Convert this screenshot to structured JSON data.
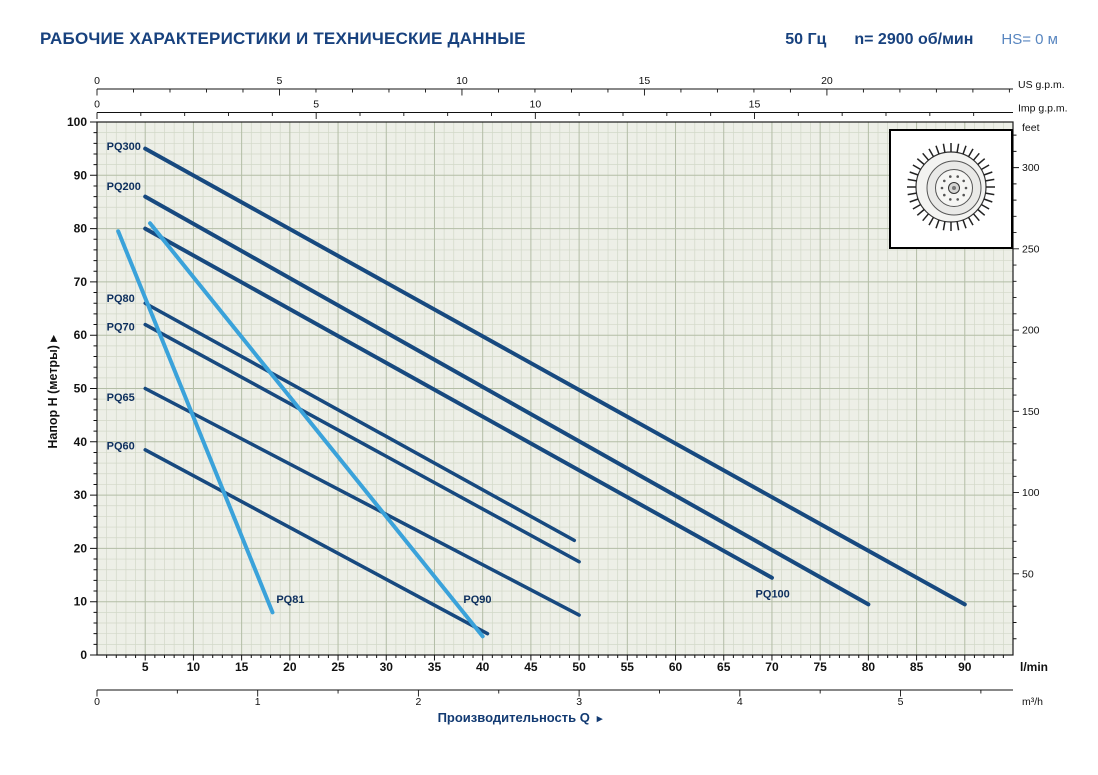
{
  "header": {
    "title": "РАБОЧИЕ ХАРАКТЕРИСТИКИ И ТЕХНИЧЕСКИЕ ДАННЫЕ",
    "frequency": "50 Гц",
    "speed": "n= 2900 об/мин",
    "hs": "HS= 0 м"
  },
  "icons": {
    "axis_arrow": "▸"
  },
  "footer": {
    "xlabel": "Производительность Q"
  },
  "chart_data": {
    "type": "line",
    "title": "Pump performance curves H(Q)",
    "xlim_lmin": [
      0,
      95
    ],
    "ylim_m": [
      0,
      100
    ],
    "colors": {
      "plot_bg": "#edefe7",
      "grid_minor": "#d2d8c8",
      "grid_major": "#b3bda6",
      "frame": "#1a1a1a",
      "dark_curve": "#17497f",
      "light_curve": "#3aa2da",
      "curve_label": "#0d2f5e"
    },
    "axes": {
      "meters": {
        "label": "Напор H (метры)",
        "ticks": [
          0,
          10,
          20,
          30,
          40,
          50,
          60,
          70,
          80,
          90,
          100
        ]
      },
      "feet": {
        "label": "feet",
        "ticks": [
          50,
          100,
          150,
          200,
          250,
          300
        ],
        "m_per_unit": 0.3048,
        "minor_step": 10
      },
      "lmin": {
        "label": "l/min",
        "ticks": [
          5,
          10,
          15,
          20,
          25,
          30,
          35,
          40,
          45,
          50,
          55,
          60,
          65,
          70,
          75,
          80,
          85,
          90
        ],
        "minor_step": 1
      },
      "us_gpm": {
        "label": "US g.p.m.",
        "ticks": [
          0,
          5,
          10,
          15,
          20
        ],
        "lmin_per_unit": 3.785,
        "minor_step": 1
      },
      "imp_gpm": {
        "label": "Imp g.p.m.",
        "ticks": [
          0,
          5,
          10,
          15
        ],
        "lmin_per_unit": 4.546,
        "minor_step": 1
      },
      "m3h": {
        "label": "m³/h",
        "ticks": [
          0,
          1,
          2,
          3,
          4,
          5
        ],
        "lmin_per_unit": 16.667,
        "minor_step": 0.5
      }
    },
    "series": [
      {
        "name": "PQ300",
        "color_key": "dark",
        "width": 4,
        "points": [
          [
            5,
            95
          ],
          [
            90,
            9.5
          ]
        ],
        "label_at": [
          1.0,
          95.5
        ]
      },
      {
        "name": "PQ200",
        "color_key": "dark",
        "width": 4,
        "points": [
          [
            5,
            86
          ],
          [
            80,
            9.5
          ]
        ],
        "label_at": [
          1.0,
          88.0
        ]
      },
      {
        "name": "PQ100",
        "color_key": "dark",
        "width": 4,
        "points": [
          [
            5,
            80
          ],
          [
            70,
            14.5
          ]
        ],
        "label_at": [
          68.3,
          11.5
        ]
      },
      {
        "name": "PQ80",
        "color_key": "dark",
        "width": 3.5,
        "points": [
          [
            5,
            66
          ],
          [
            49.5,
            21.5
          ]
        ],
        "label_at": [
          1.0,
          67.0
        ]
      },
      {
        "name": "PQ70",
        "color_key": "dark",
        "width": 3.5,
        "points": [
          [
            5,
            62
          ],
          [
            50,
            17.5
          ]
        ],
        "label_at": [
          1.0,
          61.6
        ]
      },
      {
        "name": "PQ65",
        "color_key": "dark",
        "width": 3.5,
        "points": [
          [
            5,
            50
          ],
          [
            50,
            7.5
          ]
        ],
        "label_at": [
          1.0,
          48.4
        ]
      },
      {
        "name": "PQ60",
        "color_key": "dark",
        "width": 3.5,
        "points": [
          [
            5,
            38.5
          ],
          [
            40.5,
            4
          ]
        ],
        "label_at": [
          1.0,
          39.3
        ]
      },
      {
        "name": "PQ81",
        "color_key": "light",
        "width": 4,
        "points": [
          [
            2.2,
            79.5
          ],
          [
            18.2,
            8
          ]
        ],
        "label_at": [
          18.6,
          10.5
        ]
      },
      {
        "name": "PQ90",
        "color_key": "light",
        "width": 4,
        "points": [
          [
            5.5,
            81
          ],
          [
            40,
            3.5
          ]
        ],
        "label_at": [
          38.0,
          10.5
        ]
      }
    ]
  }
}
